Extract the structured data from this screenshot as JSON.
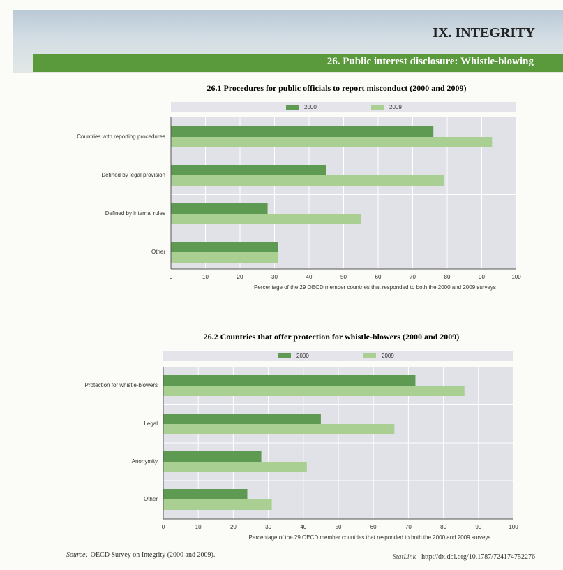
{
  "header": {
    "section": "IX. INTEGRITY",
    "subtitle": "26. Public interest disclosure: Whistle-blowing"
  },
  "chart_data": [
    {
      "type": "bar",
      "orientation": "horizontal",
      "title": "26.1 Procedures for public officials to report misconduct (2000 and 2009)",
      "categories": [
        "Countries with reporting procedures",
        "Defined by legal provision",
        "Defined by internal rules",
        "Other"
      ],
      "series": [
        {
          "name": "2000",
          "color": "#5e9a52",
          "values": [
            76,
            45,
            28,
            31
          ]
        },
        {
          "name": "2009",
          "color": "#a9cf92",
          "values": [
            93,
            79,
            55,
            31
          ]
        }
      ],
      "xlim": [
        0,
        100
      ],
      "xticks": [
        0,
        10,
        20,
        30,
        40,
        50,
        60,
        70,
        80,
        90,
        100
      ],
      "xlabel": "Percentage of the 29 OECD member countries that responded  to both the 2000 and 2009 surveys",
      "grid": true
    },
    {
      "type": "bar",
      "orientation": "horizontal",
      "title": "26.2 Countries that offer protection for whistle-blowers (2000 and 2009)",
      "categories": [
        "Protection for whistle-blowers",
        "Legal",
        "Anonymity",
        "Other"
      ],
      "series": [
        {
          "name": "2000",
          "color": "#5e9a52",
          "values": [
            72,
            45,
            28,
            24
          ]
        },
        {
          "name": "2009",
          "color": "#a9cf92",
          "values": [
            86,
            66,
            41,
            31
          ]
        }
      ],
      "xlim": [
        0,
        100
      ],
      "xticks": [
        0,
        10,
        20,
        30,
        40,
        50,
        60,
        70,
        80,
        90,
        100
      ],
      "xlabel": "Percentage of the 29 OECD member countries that responded  to both the 2000 and 2009 surveys",
      "grid": true
    }
  ],
  "footer": {
    "source_label": "Source:",
    "source": "OECD Survey on Integrity (2000 and 2009).",
    "statlink": "StatLink",
    "url": "http://dx.doi.org/10.1787/724174752276"
  }
}
